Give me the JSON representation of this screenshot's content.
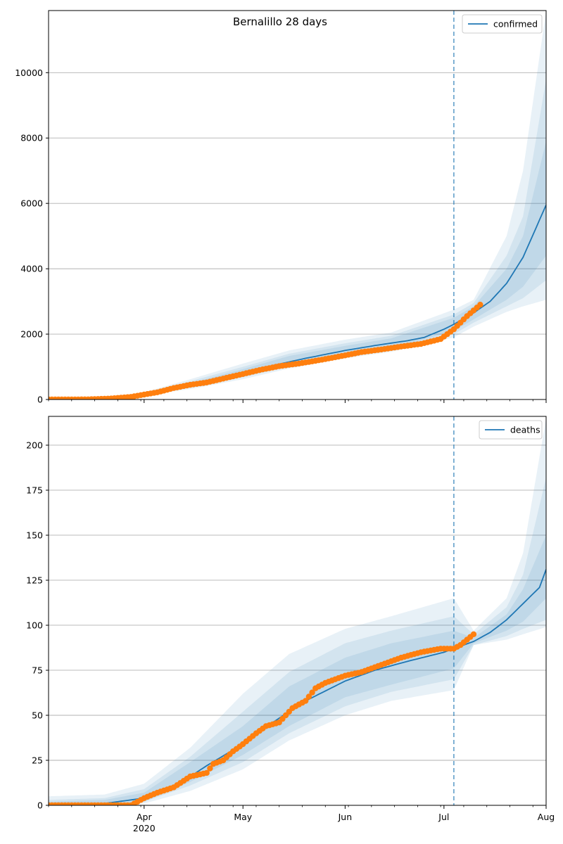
{
  "title": "Bernalillo 28 days",
  "colors": {
    "line": "#1f77b4",
    "obs": "#ff7f0e",
    "band": "#1f77b4",
    "grid": "#b0b0b0",
    "vline": "#1f77b4"
  },
  "x_ticks": [
    {
      "date": "2020-04-01",
      "label": "Apr",
      "sublabel": "2020"
    },
    {
      "date": "2020-05-01",
      "label": "May"
    },
    {
      "date": "2020-06-01",
      "label": "Jun"
    },
    {
      "date": "2020-07-01",
      "label": "Jul"
    },
    {
      "date": "2020-08-01",
      "label": "Aug"
    }
  ],
  "chart_data": [
    {
      "type": "line",
      "legend": "confirmed",
      "legend_position": "top-right",
      "xlim": [
        "2020-03-03",
        "2020-08-01"
      ],
      "ylim": [
        0,
        11900
      ],
      "yticks": [
        0,
        2000,
        4000,
        6000,
        8000,
        10000
      ],
      "grid": "horizontal",
      "forecast_start": "2020-07-04",
      "median": [
        [
          "2020-03-03",
          0
        ],
        [
          "2020-03-15",
          5
        ],
        [
          "2020-03-25",
          60
        ],
        [
          "2020-04-01",
          160
        ],
        [
          "2020-04-10",
          340
        ],
        [
          "2020-04-20",
          520
        ],
        [
          "2020-05-01",
          820
        ],
        [
          "2020-05-10",
          1040
        ],
        [
          "2020-05-20",
          1260
        ],
        [
          "2020-06-01",
          1500
        ],
        [
          "2020-06-10",
          1650
        ],
        [
          "2020-06-20",
          1800
        ],
        [
          "2020-06-25",
          1900
        ],
        [
          "2020-07-01",
          2150
        ],
        [
          "2020-07-04",
          2300
        ],
        [
          "2020-07-10",
          2650
        ],
        [
          "2020-07-15",
          3000
        ],
        [
          "2020-07-20",
          3550
        ],
        [
          "2020-07-25",
          4350
        ],
        [
          "2020-08-01",
          5950
        ]
      ],
      "bands": [
        [
          [
            "2020-03-03",
            0,
            0
          ],
          [
            "2020-03-20",
            5,
            40
          ],
          [
            "2020-04-01",
            120,
            220
          ],
          [
            "2020-04-15",
            320,
            620
          ],
          [
            "2020-05-01",
            620,
            1100
          ],
          [
            "2020-05-15",
            950,
            1500
          ],
          [
            "2020-06-01",
            1260,
            1830
          ],
          [
            "2020-06-15",
            1460,
            2050
          ],
          [
            "2020-07-04",
            1900,
            2750
          ],
          [
            "2020-07-10",
            2230,
            3050
          ],
          [
            "2020-07-20",
            2680,
            5000
          ],
          [
            "2020-07-25",
            2850,
            7000
          ],
          [
            "2020-08-01",
            3050,
            11900
          ]
        ],
        [
          [
            "2020-03-03",
            0,
            0
          ],
          [
            "2020-03-20",
            5,
            30
          ],
          [
            "2020-04-01",
            130,
            200
          ],
          [
            "2020-04-15",
            360,
            560
          ],
          [
            "2020-05-01",
            680,
            1000
          ],
          [
            "2020-05-15",
            1010,
            1400
          ],
          [
            "2020-06-01",
            1320,
            1720
          ],
          [
            "2020-06-15",
            1510,
            1950
          ],
          [
            "2020-07-04",
            2000,
            2600
          ],
          [
            "2020-07-10",
            2350,
            2950
          ],
          [
            "2020-07-20",
            2850,
            4400
          ],
          [
            "2020-07-25",
            3100,
            5600
          ],
          [
            "2020-08-01",
            3650,
            9800
          ]
        ],
        [
          [
            "2020-03-03",
            0,
            0
          ],
          [
            "2020-03-20",
            5,
            20
          ],
          [
            "2020-04-01",
            140,
            185
          ],
          [
            "2020-04-15",
            400,
            500
          ],
          [
            "2020-05-01",
            730,
            930
          ],
          [
            "2020-05-15",
            1060,
            1330
          ],
          [
            "2020-06-01",
            1380,
            1640
          ],
          [
            "2020-06-15",
            1560,
            1870
          ],
          [
            "2020-07-04",
            2100,
            2500
          ],
          [
            "2020-07-10",
            2450,
            2850
          ],
          [
            "2020-07-20",
            3050,
            4000
          ],
          [
            "2020-07-25",
            3450,
            5000
          ],
          [
            "2020-08-01",
            4400,
            7900
          ]
        ]
      ],
      "observed": [
        [
          "2020-03-03",
          0
        ],
        [
          "2020-03-15",
          4
        ],
        [
          "2020-03-22",
          30
        ],
        [
          "2020-03-28",
          80
        ],
        [
          "2020-04-01",
          150
        ],
        [
          "2020-04-05",
          220
        ],
        [
          "2020-04-10",
          350
        ],
        [
          "2020-04-15",
          450
        ],
        [
          "2020-04-20",
          520
        ],
        [
          "2020-04-25",
          640
        ],
        [
          "2020-05-01",
          780
        ],
        [
          "2020-05-06",
          900
        ],
        [
          "2020-05-12",
          1020
        ],
        [
          "2020-05-18",
          1100
        ],
        [
          "2020-05-24",
          1200
        ],
        [
          "2020-06-01",
          1350
        ],
        [
          "2020-06-06",
          1450
        ],
        [
          "2020-06-12",
          1530
        ],
        [
          "2020-06-18",
          1620
        ],
        [
          "2020-06-24",
          1700
        ],
        [
          "2020-06-30",
          1850
        ],
        [
          "2020-07-04",
          2150
        ],
        [
          "2020-07-08",
          2550
        ],
        [
          "2020-07-12",
          2900
        ]
      ]
    },
    {
      "type": "line",
      "legend": "deaths",
      "legend_position": "top-right",
      "xlim": [
        "2020-03-03",
        "2020-08-01"
      ],
      "ylim": [
        0,
        216
      ],
      "yticks": [
        0,
        25,
        50,
        75,
        100,
        125,
        150,
        175,
        200
      ],
      "grid": "horizontal",
      "forecast_start": "2020-07-04",
      "median": [
        [
          "2020-03-03",
          0
        ],
        [
          "2020-03-20",
          1
        ],
        [
          "2020-04-01",
          4
        ],
        [
          "2020-04-10",
          10
        ],
        [
          "2020-04-20",
          22
        ],
        [
          "2020-05-01",
          34
        ],
        [
          "2020-05-10",
          46
        ],
        [
          "2020-05-20",
          58
        ],
        [
          "2020-06-01",
          69
        ],
        [
          "2020-06-10",
          75
        ],
        [
          "2020-06-20",
          80
        ],
        [
          "2020-07-01",
          85
        ],
        [
          "2020-07-04",
          87
        ],
        [
          "2020-07-10",
          91
        ],
        [
          "2020-07-15",
          96
        ],
        [
          "2020-07-20",
          103
        ],
        [
          "2020-07-25",
          112
        ],
        [
          "2020-07-30",
          121
        ],
        [
          "2020-08-01",
          131
        ]
      ],
      "bands": [
        [
          [
            "2020-03-03",
            0,
            5
          ],
          [
            "2020-03-20",
            0,
            6
          ],
          [
            "2020-04-01",
            1,
            12
          ],
          [
            "2020-04-15",
            8,
            32
          ],
          [
            "2020-05-01",
            20,
            62
          ],
          [
            "2020-05-15",
            36,
            84
          ],
          [
            "2020-06-01",
            50,
            98
          ],
          [
            "2020-06-15",
            58,
            105
          ],
          [
            "2020-07-04",
            64,
            115
          ],
          [
            "2020-07-10",
            89,
            97
          ],
          [
            "2020-07-20",
            92,
            115
          ],
          [
            "2020-07-25",
            95,
            140
          ],
          [
            "2020-08-01",
            99,
            215
          ]
        ],
        [
          [
            "2020-03-03",
            0,
            3
          ],
          [
            "2020-03-20",
            0,
            4
          ],
          [
            "2020-04-01",
            2,
            9
          ],
          [
            "2020-04-15",
            11,
            27
          ],
          [
            "2020-05-01",
            24,
            52
          ],
          [
            "2020-05-15",
            40,
            74
          ],
          [
            "2020-06-01",
            55,
            90
          ],
          [
            "2020-06-15",
            63,
            97
          ],
          [
            "2020-07-04",
            70,
            105
          ],
          [
            "2020-07-10",
            89,
            95
          ],
          [
            "2020-07-20",
            94,
            110
          ],
          [
            "2020-07-25",
            98,
            128
          ],
          [
            "2020-08-01",
            103,
            182
          ]
        ],
        [
          [
            "2020-03-03",
            0,
            2
          ],
          [
            "2020-03-20",
            0,
            3
          ],
          [
            "2020-04-01",
            2,
            7
          ],
          [
            "2020-04-15",
            13,
            24
          ],
          [
            "2020-05-01",
            28,
            44
          ],
          [
            "2020-05-15",
            44,
            66
          ],
          [
            "2020-06-01",
            60,
            82
          ],
          [
            "2020-06-15",
            67,
            90
          ],
          [
            "2020-07-04",
            76,
            97
          ],
          [
            "2020-07-10",
            90,
            93
          ],
          [
            "2020-07-20",
            97,
            106
          ],
          [
            "2020-07-25",
            102,
            120
          ],
          [
            "2020-08-01",
            115,
            150
          ]
        ]
      ],
      "observed": [
        [
          "2020-03-03",
          0
        ],
        [
          "2020-03-28",
          0
        ],
        [
          "2020-04-01",
          4
        ],
        [
          "2020-04-05",
          7
        ],
        [
          "2020-04-10",
          10
        ],
        [
          "2020-04-15",
          16
        ],
        [
          "2020-04-20",
          18
        ],
        [
          "2020-04-22",
          23
        ],
        [
          "2020-04-25",
          25
        ],
        [
          "2020-04-28",
          30
        ],
        [
          "2020-05-01",
          34
        ],
        [
          "2020-05-05",
          40
        ],
        [
          "2020-05-08",
          44
        ],
        [
          "2020-05-12",
          46
        ],
        [
          "2020-05-16",
          54
        ],
        [
          "2020-05-20",
          58
        ],
        [
          "2020-05-23",
          65
        ],
        [
          "2020-05-26",
          68
        ],
        [
          "2020-06-01",
          72
        ],
        [
          "2020-06-06",
          74
        ],
        [
          "2020-06-12",
          78
        ],
        [
          "2020-06-18",
          82
        ],
        [
          "2020-06-24",
          85
        ],
        [
          "2020-06-30",
          87
        ],
        [
          "2020-07-04",
          87
        ],
        [
          "2020-07-06",
          89
        ],
        [
          "2020-07-08",
          92
        ],
        [
          "2020-07-10",
          95
        ]
      ]
    }
  ]
}
